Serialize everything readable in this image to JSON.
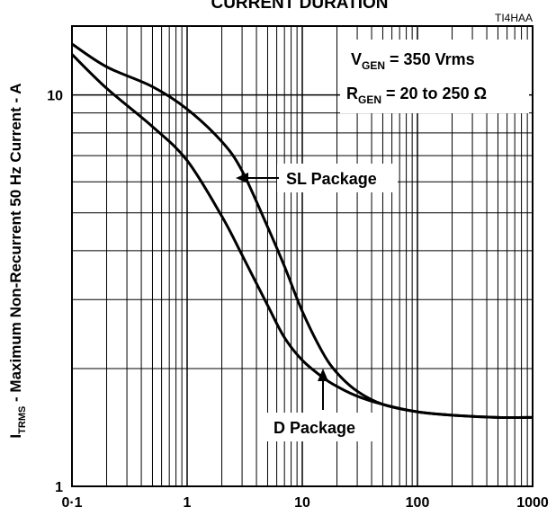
{
  "chart_data": {
    "type": "line",
    "title": "CURRENT DURATION",
    "figure_id": "TI4HAA",
    "xscale": "log",
    "yscale": "log",
    "xlim": [
      0.1,
      1000
    ],
    "ylim": [
      1,
      15
    ],
    "grid": true,
    "x_ticks": [
      "0·1",
      "1",
      "10",
      "100",
      "1000"
    ],
    "y_ticks": [
      "1",
      "10"
    ],
    "ylabel": {
      "pre": "I",
      "sub": "TRMS",
      "post": " - Maximum  Non-Recurrent 50 Hz Current  - A"
    },
    "conditions": [
      {
        "main": "V",
        "sub": "GEN",
        "rest": " = 350 Vrms"
      },
      {
        "main": "R",
        "sub": "GEN",
        "rest": " = 20 to 250 Ω"
      }
    ],
    "series": [
      {
        "name": "SL Package",
        "x": [
          0.1,
          0.2,
          0.5,
          1,
          2,
          3,
          5,
          7,
          10,
          15,
          20,
          30,
          50,
          100,
          200,
          500,
          1000
        ],
        "y": [
          13.5,
          11.8,
          10.5,
          9.2,
          7.6,
          6.4,
          4.6,
          3.65,
          2.8,
          2.2,
          1.95,
          1.75,
          1.62,
          1.55,
          1.52,
          1.5,
          1.5
        ]
      },
      {
        "name": "D Package",
        "x": [
          0.1,
          0.2,
          0.5,
          1,
          2,
          3,
          5,
          7,
          10,
          15,
          20,
          30,
          50,
          100,
          200,
          500,
          1000
        ],
        "y": [
          12.7,
          10.4,
          8.3,
          6.8,
          4.9,
          3.9,
          2.9,
          2.4,
          2.1,
          1.9,
          1.8,
          1.7,
          1.62,
          1.55,
          1.52,
          1.5,
          1.5
        ]
      }
    ],
    "annotations": [
      {
        "text": "SL Package",
        "series": "SL Package"
      },
      {
        "text": "D Package",
        "series": "D Package"
      }
    ]
  }
}
